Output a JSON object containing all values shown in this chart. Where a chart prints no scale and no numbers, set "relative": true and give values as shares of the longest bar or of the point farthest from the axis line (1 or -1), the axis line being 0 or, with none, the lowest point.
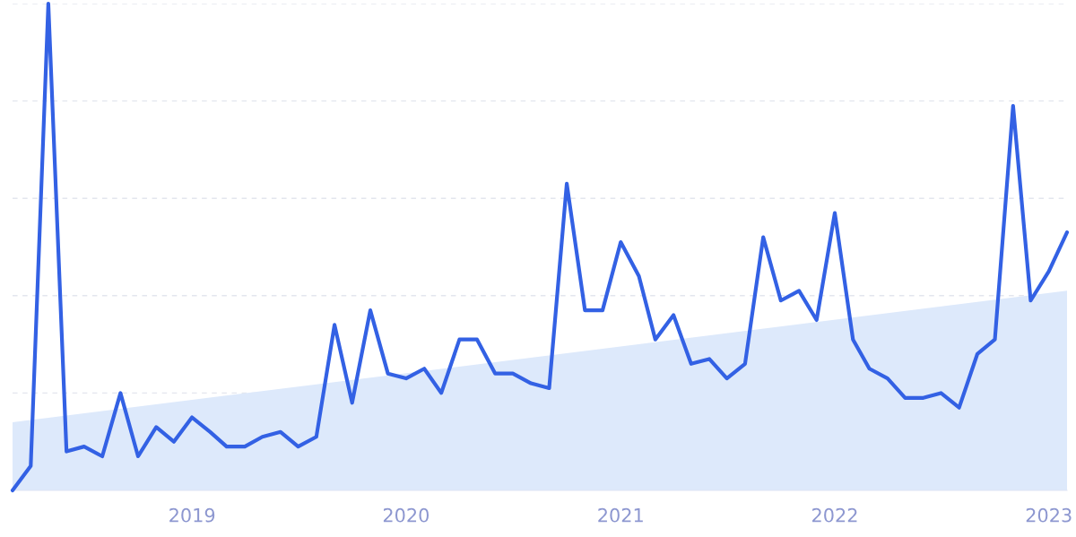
{
  "chart_data": {
    "type": "line",
    "relative": true,
    "grid": "y",
    "x": [
      "2018-03",
      "2018-04",
      "2018-05",
      "2018-06",
      "2018-07",
      "2018-08",
      "2018-09",
      "2018-10",
      "2018-11",
      "2018-12",
      "2019-01",
      "2019-02",
      "2019-03",
      "2019-04",
      "2019-05",
      "2019-06",
      "2019-07",
      "2019-08",
      "2019-09",
      "2019-10",
      "2019-11",
      "2019-12",
      "2020-01",
      "2020-02",
      "2020-03",
      "2020-04",
      "2020-05",
      "2020-06",
      "2020-07",
      "2020-08",
      "2020-09",
      "2020-10",
      "2020-11",
      "2020-12",
      "2021-01",
      "2021-02",
      "2021-03",
      "2021-04",
      "2021-05",
      "2021-06",
      "2021-07",
      "2021-08",
      "2021-09",
      "2021-10",
      "2021-11",
      "2021-12",
      "2022-01",
      "2022-02",
      "2022-03",
      "2022-04",
      "2022-05",
      "2022-06",
      "2022-07",
      "2022-08",
      "2022-09",
      "2022-10",
      "2022-11",
      "2022-12",
      "2023-01",
      "2023-02"
    ],
    "xlim": [
      "2018-03",
      "2023-02"
    ],
    "xticks": [
      {
        "value": "2019-01",
        "label": "2019"
      },
      {
        "value": "2020-01",
        "label": "2020"
      },
      {
        "value": "2021-01",
        "label": "2021"
      },
      {
        "value": "2022-01",
        "label": "2022"
      },
      {
        "value": "2023-01",
        "label": "2023"
      }
    ],
    "series": [
      {
        "type": "area",
        "color": "#dde9fb",
        "x": [
          "2018-03",
          "2023-02"
        ],
        "values": [
          0.14,
          0.41
        ]
      },
      {
        "color": "#3361e4",
        "values": [
          0,
          0.05,
          1,
          0.08,
          0.09,
          0.07,
          0.2,
          0.07,
          0.13,
          0.1,
          0.15,
          0.12,
          0.09,
          0.09,
          0.11,
          0.12,
          0.09,
          0.11,
          0.34,
          0.18,
          0.37,
          0.24,
          0.23,
          0.25,
          0.2,
          0.31,
          0.31,
          0.24,
          0.24,
          0.22,
          0.21,
          0.63,
          0.37,
          0.37,
          0.51,
          0.44,
          0.31,
          0.36,
          0.26,
          0.27,
          0.23,
          0.26,
          0.52,
          0.39,
          0.41,
          0.35,
          0.57,
          0.31,
          0.25,
          0.23,
          0.19,
          0.19,
          0.2,
          0.17,
          0.28,
          0.31,
          0.79,
          0.39,
          0.45,
          0.53
        ]
      }
    ]
  }
}
